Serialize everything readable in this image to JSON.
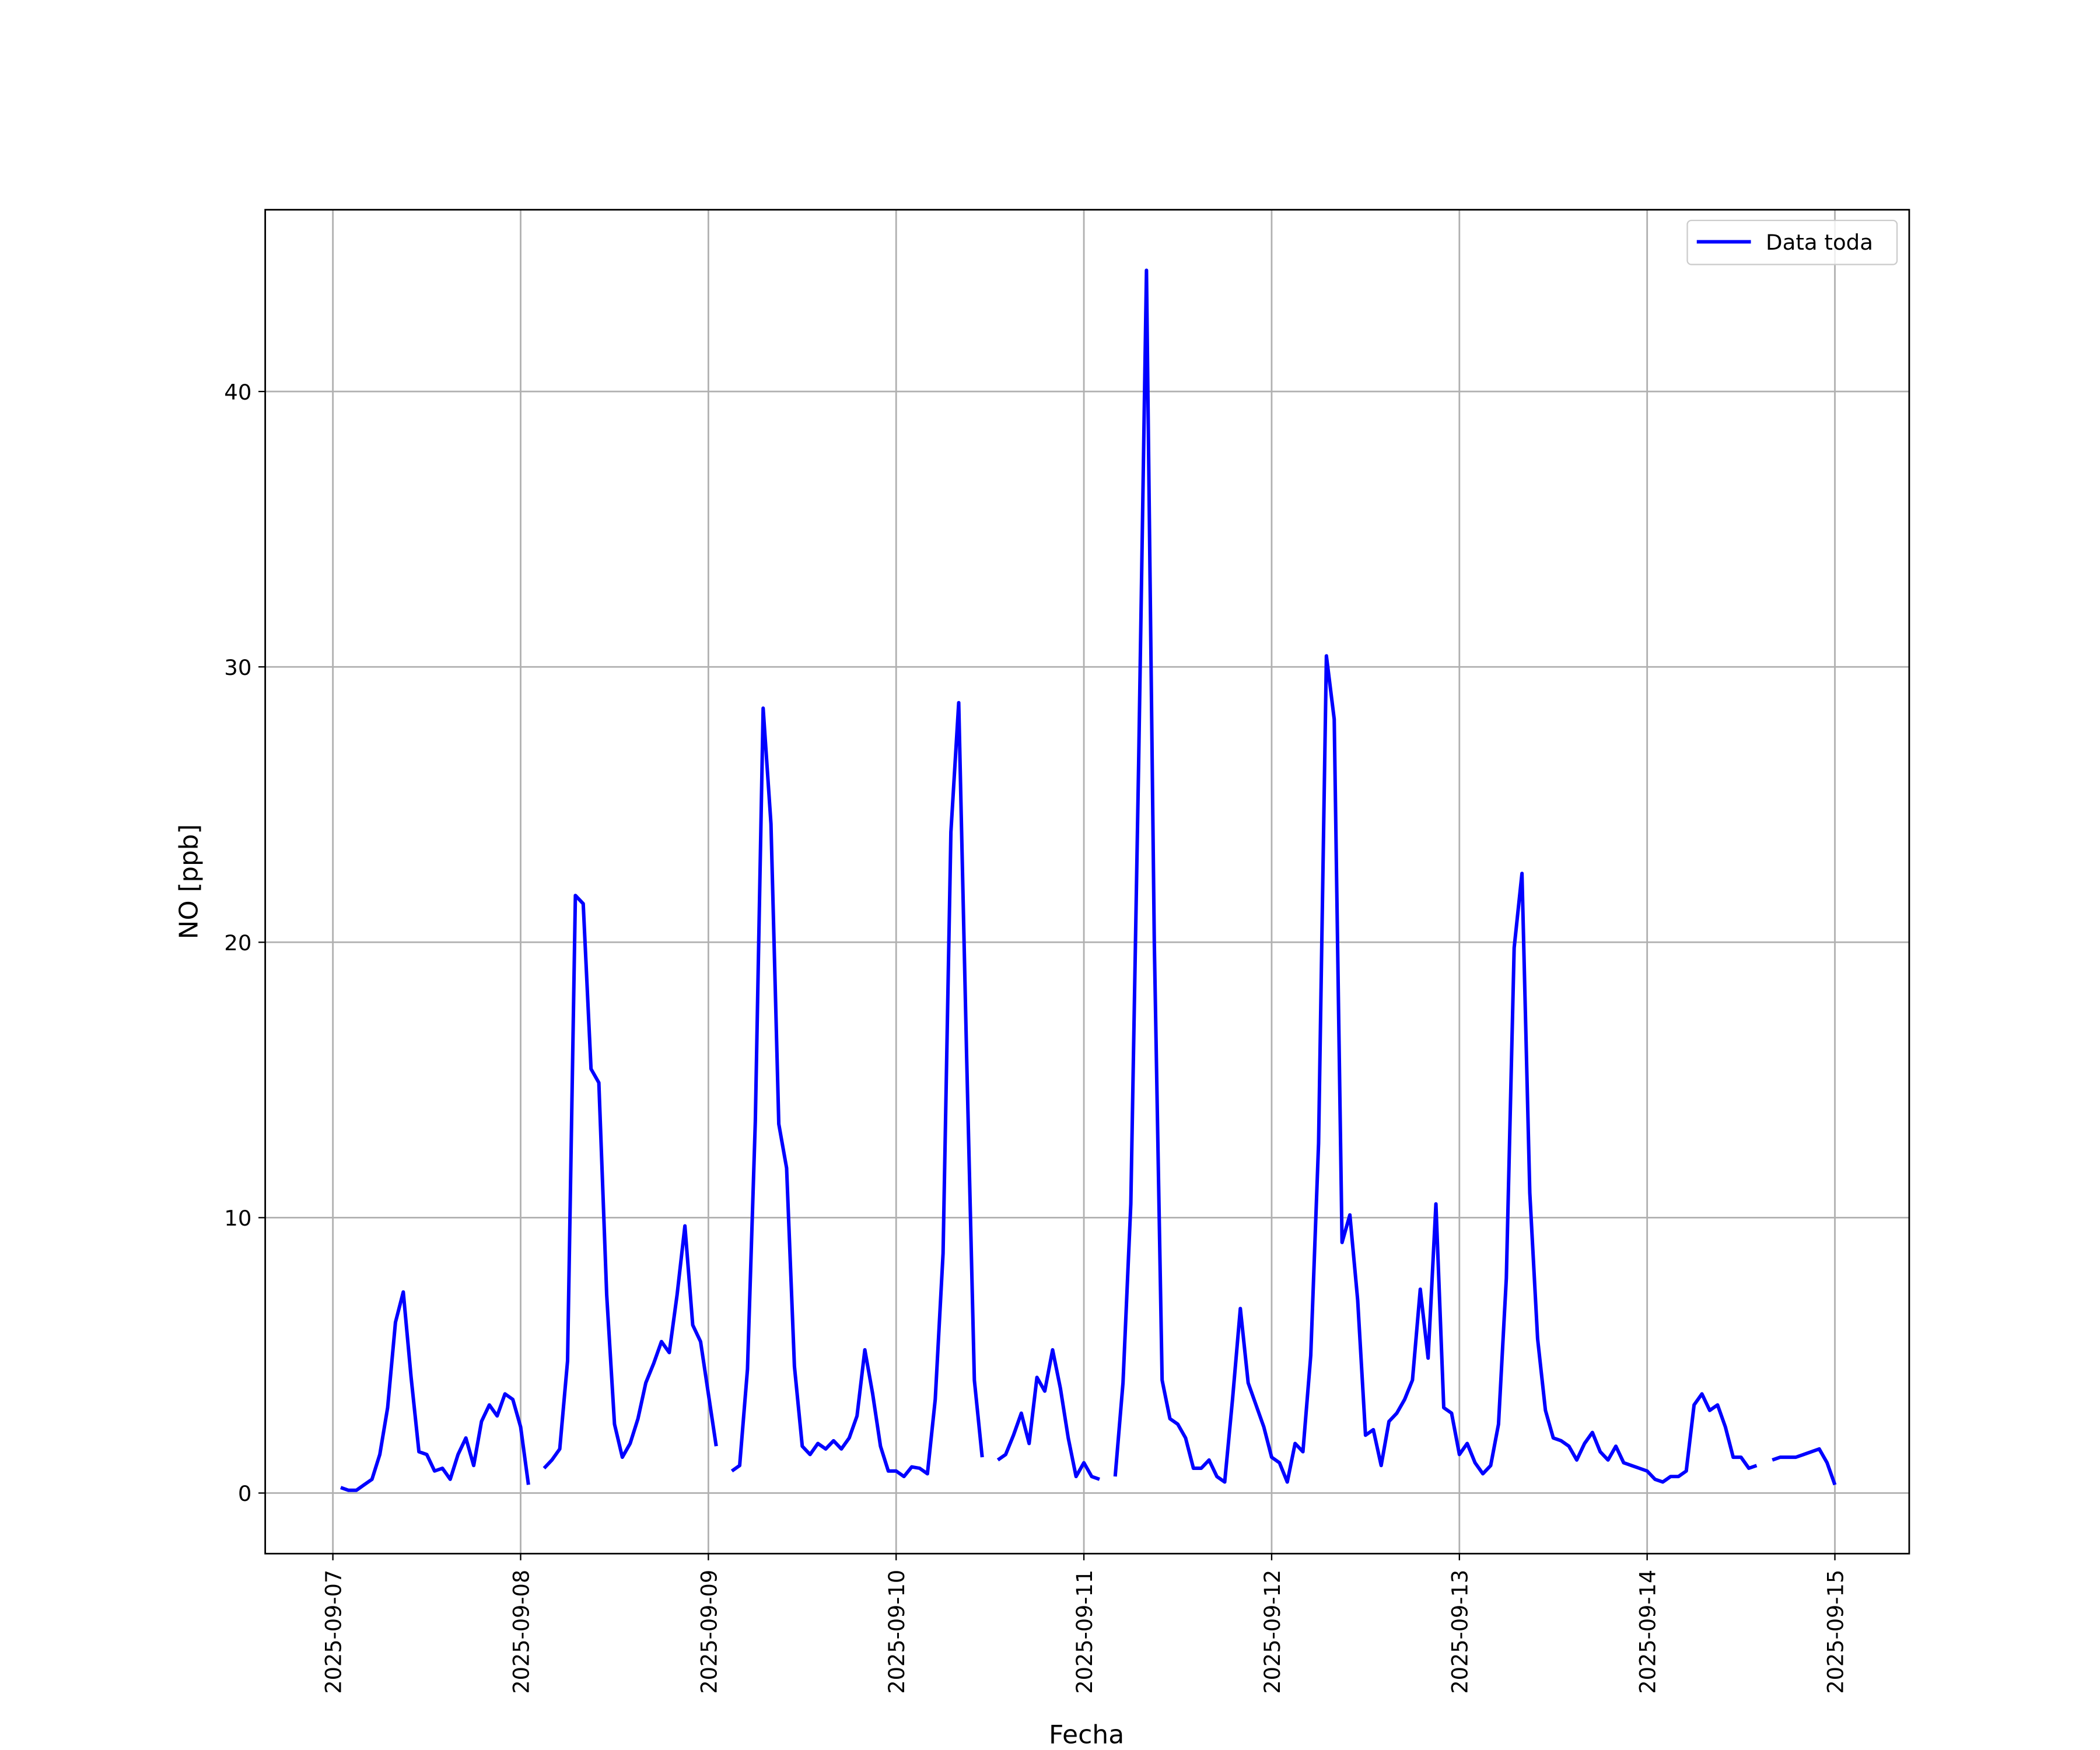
{
  "chart_data": {
    "type": "line",
    "xlabel": "Fecha",
    "ylabel": "NO [ppb]",
    "xlim": [
      "2025-09-06 15:21",
      "2025-09-15 09:30"
    ],
    "xticks": [
      "2025-09-07",
      "2025-09-08",
      "2025-09-09",
      "2025-09-10",
      "2025-09-11",
      "2025-09-12",
      "2025-09-13",
      "2025-09-14",
      "2025-09-15"
    ],
    "ylim": [
      -2.2,
      46.6
    ],
    "yticks": [
      0,
      10,
      20,
      30,
      40
    ],
    "grid": true,
    "legend": "upper right",
    "x": [
      "2025-09-07 01:00",
      "2025-09-07 02:00",
      "2025-09-07 03:00",
      "2025-09-07 04:00",
      "2025-09-07 05:00",
      "2025-09-07 06:00",
      "2025-09-07 07:00",
      "2025-09-07 08:00",
      "2025-09-07 09:00",
      "2025-09-07 10:00",
      "2025-09-07 11:00",
      "2025-09-07 12:00",
      "2025-09-07 13:00",
      "2025-09-07 14:00",
      "2025-09-07 15:00",
      "2025-09-07 16:00",
      "2025-09-07 17:00",
      "2025-09-07 18:00",
      "2025-09-07 19:00",
      "2025-09-07 20:00",
      "2025-09-07 21:00",
      "2025-09-07 22:00",
      "2025-09-07 23:00",
      "2025-09-08 00:00",
      "2025-09-08 01:00",
      "2025-09-08 02:00",
      "2025-09-08 03:00",
      "2025-09-08 04:00",
      "2025-09-08 05:00",
      "2025-09-08 06:00",
      "2025-09-08 07:00",
      "2025-09-08 08:00",
      "2025-09-08 09:00",
      "2025-09-08 10:00",
      "2025-09-08 11:00",
      "2025-09-08 12:00",
      "2025-09-08 13:00",
      "2025-09-08 14:00",
      "2025-09-08 15:00",
      "2025-09-08 16:00",
      "2025-09-08 17:00",
      "2025-09-08 18:00",
      "2025-09-08 19:00",
      "2025-09-08 20:00",
      "2025-09-08 21:00",
      "2025-09-08 22:00",
      "2025-09-08 23:00",
      "2025-09-09 00:00",
      "2025-09-09 01:00",
      "2025-09-09 02:00",
      "2025-09-09 03:00",
      "2025-09-09 04:00",
      "2025-09-09 05:00",
      "2025-09-09 06:00",
      "2025-09-09 07:00",
      "2025-09-09 08:00",
      "2025-09-09 09:00",
      "2025-09-09 10:00",
      "2025-09-09 11:00",
      "2025-09-09 12:00",
      "2025-09-09 13:00",
      "2025-09-09 14:00",
      "2025-09-09 15:00",
      "2025-09-09 16:00",
      "2025-09-09 17:00",
      "2025-09-09 18:00",
      "2025-09-09 19:00",
      "2025-09-09 20:00",
      "2025-09-09 21:00",
      "2025-09-09 22:00",
      "2025-09-09 23:00",
      "2025-09-10 00:00",
      "2025-09-10 01:00",
      "2025-09-10 02:00",
      "2025-09-10 03:00",
      "2025-09-10 04:00",
      "2025-09-10 05:00",
      "2025-09-10 06:00",
      "2025-09-10 07:00",
      "2025-09-10 08:00",
      "2025-09-10 09:00",
      "2025-09-10 10:00",
      "2025-09-10 11:00",
      "2025-09-10 12:00",
      "2025-09-10 13:00",
      "2025-09-10 14:00",
      "2025-09-10 15:00",
      "2025-09-10 16:00",
      "2025-09-10 17:00",
      "2025-09-10 18:00",
      "2025-09-10 19:00",
      "2025-09-10 20:00",
      "2025-09-10 21:00",
      "2025-09-10 22:00",
      "2025-09-10 23:00",
      "2025-09-11 00:00",
      "2025-09-11 01:00",
      "2025-09-11 02:00",
      "2025-09-11 03:00",
      "2025-09-11 04:00",
      "2025-09-11 05:00",
      "2025-09-11 06:00",
      "2025-09-11 07:00",
      "2025-09-11 08:00",
      "2025-09-11 09:00",
      "2025-09-11 10:00",
      "2025-09-11 11:00",
      "2025-09-11 12:00",
      "2025-09-11 13:00",
      "2025-09-11 14:00",
      "2025-09-11 15:00",
      "2025-09-11 16:00",
      "2025-09-11 17:00",
      "2025-09-11 18:00",
      "2025-09-11 19:00",
      "2025-09-11 20:00",
      "2025-09-11 21:00",
      "2025-09-11 22:00",
      "2025-09-11 23:00",
      "2025-09-12 00:00",
      "2025-09-12 01:00",
      "2025-09-12 02:00",
      "2025-09-12 03:00",
      "2025-09-12 04:00",
      "2025-09-12 05:00",
      "2025-09-12 06:00",
      "2025-09-12 07:00",
      "2025-09-12 08:00",
      "2025-09-12 09:00",
      "2025-09-12 10:00",
      "2025-09-12 11:00",
      "2025-09-12 12:00",
      "2025-09-12 13:00",
      "2025-09-12 14:00",
      "2025-09-12 15:00",
      "2025-09-12 16:00",
      "2025-09-12 17:00",
      "2025-09-12 18:00",
      "2025-09-12 19:00",
      "2025-09-12 20:00",
      "2025-09-12 21:00",
      "2025-09-12 22:00",
      "2025-09-12 23:00",
      "2025-09-13 00:00",
      "2025-09-13 01:00",
      "2025-09-13 02:00",
      "2025-09-13 03:00",
      "2025-09-13 04:00",
      "2025-09-13 05:00",
      "2025-09-13 06:00",
      "2025-09-13 07:00",
      "2025-09-13 08:00",
      "2025-09-13 09:00",
      "2025-09-13 10:00",
      "2025-09-13 11:00",
      "2025-09-13 12:00",
      "2025-09-13 13:00",
      "2025-09-13 14:00",
      "2025-09-13 15:00",
      "2025-09-13 16:00",
      "2025-09-13 17:00",
      "2025-09-13 18:00",
      "2025-09-13 19:00",
      "2025-09-13 20:00",
      "2025-09-13 21:00",
      "2025-09-13 22:00",
      "2025-09-13 23:00",
      "2025-09-14 00:00",
      "2025-09-14 01:00",
      "2025-09-14 02:00",
      "2025-09-14 03:00",
      "2025-09-14 04:00",
      "2025-09-14 05:00",
      "2025-09-14 06:00",
      "2025-09-14 07:00",
      "2025-09-14 08:00",
      "2025-09-14 09:00",
      "2025-09-14 10:00",
      "2025-09-14 11:00",
      "2025-09-14 12:00",
      "2025-09-14 13:00",
      "2025-09-14 14:00",
      "2025-09-14 15:00",
      "2025-09-14 16:00",
      "2025-09-14 17:00",
      "2025-09-14 18:00",
      "2025-09-14 19:00",
      "2025-09-14 20:00",
      "2025-09-14 21:00",
      "2025-09-14 22:00",
      "2025-09-14 23:00",
      "2025-09-15 00:00"
    ],
    "series": [
      {
        "name": "Data toda",
        "color": "#0000ff",
        "values": [
          0.2,
          0.1,
          0.1,
          0.3,
          0.5,
          1.4,
          3.1,
          6.2,
          7.3,
          4.2,
          1.5,
          1.4,
          0.8,
          0.9,
          0.5,
          1.4,
          2.0,
          1.0,
          2.6,
          3.2,
          2.8,
          3.6,
          3.4,
          2.4,
          0.3,
          null,
          0.9,
          1.2,
          1.6,
          4.8,
          21.7,
          21.4,
          15.4,
          14.9,
          7.2,
          2.5,
          1.3,
          1.8,
          2.7,
          4.0,
          4.7,
          5.5,
          5.1,
          7.2,
          9.7,
          6.1,
          5.5,
          3.6,
          1.7,
          null,
          0.8,
          1.0,
          4.5,
          13.5,
          28.5,
          24.3,
          13.4,
          11.8,
          4.6,
          1.7,
          1.4,
          1.8,
          1.6,
          1.9,
          1.6,
          2.0,
          2.8,
          5.2,
          3.6,
          1.7,
          0.8,
          0.8,
          0.6,
          0.95,
          0.9,
          0.7,
          3.4,
          8.7,
          24.0,
          28.7,
          16.0,
          4.1,
          1.3,
          null,
          1.2,
          1.4,
          2.1,
          2.9,
          1.8,
          4.2,
          3.7,
          5.2,
          3.8,
          2.0,
          0.6,
          1.1,
          0.6,
          0.5,
          null,
          0.6,
          4.0,
          10.5,
          26.5,
          44.4,
          20.0,
          4.1,
          2.7,
          2.5,
          2.0,
          0.9,
          0.9,
          1.2,
          0.6,
          0.4,
          3.4,
          6.7,
          4.0,
          3.2,
          2.4,
          1.3,
          1.1,
          0.4,
          1.8,
          1.5,
          5.0,
          12.7,
          30.4,
          28.1,
          9.1,
          10.1,
          7.0,
          2.1,
          2.3,
          1.0,
          2.6,
          2.9,
          3.4,
          4.1,
          7.4,
          4.9,
          10.5,
          3.1,
          2.9,
          1.4,
          1.8,
          1.1,
          0.7,
          1.0,
          2.5,
          7.8,
          19.8,
          22.5,
          10.9,
          5.6,
          3.0,
          2.0,
          1.9,
          1.7,
          1.2,
          1.8,
          2.2,
          1.5,
          1.2,
          1.7,
          1.1,
          1.0,
          0.9,
          0.8,
          0.5,
          0.4,
          0.6,
          0.6,
          0.8,
          3.2,
          3.6,
          3.0,
          3.2,
          2.4,
          1.3,
          1.3,
          0.9,
          1.0,
          null,
          1.2,
          1.3,
          1.3,
          1.3,
          1.4,
          1.5,
          1.6,
          1.1,
          0.3
        ]
      }
    ]
  }
}
